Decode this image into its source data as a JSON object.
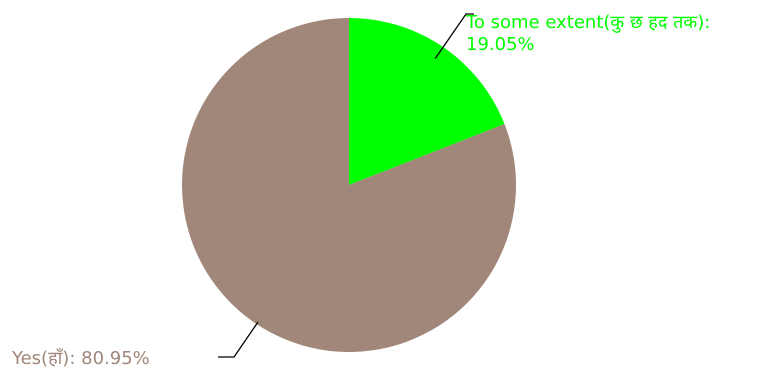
{
  "chart_data": {
    "type": "pie",
    "slices": [
      {
        "label": "To some extent(कु छ हद तक)",
        "value": 19.05,
        "value_text": "19.05%",
        "color": "#00ff00"
      },
      {
        "label": "Yes(हाँ)",
        "value": 80.95,
        "value_text": "80.95%",
        "color": "#a0877a"
      }
    ],
    "start_angle": "12 o'clock",
    "direction": "clockwise",
    "legend": "none",
    "label_style": "outside with leader lines"
  }
}
